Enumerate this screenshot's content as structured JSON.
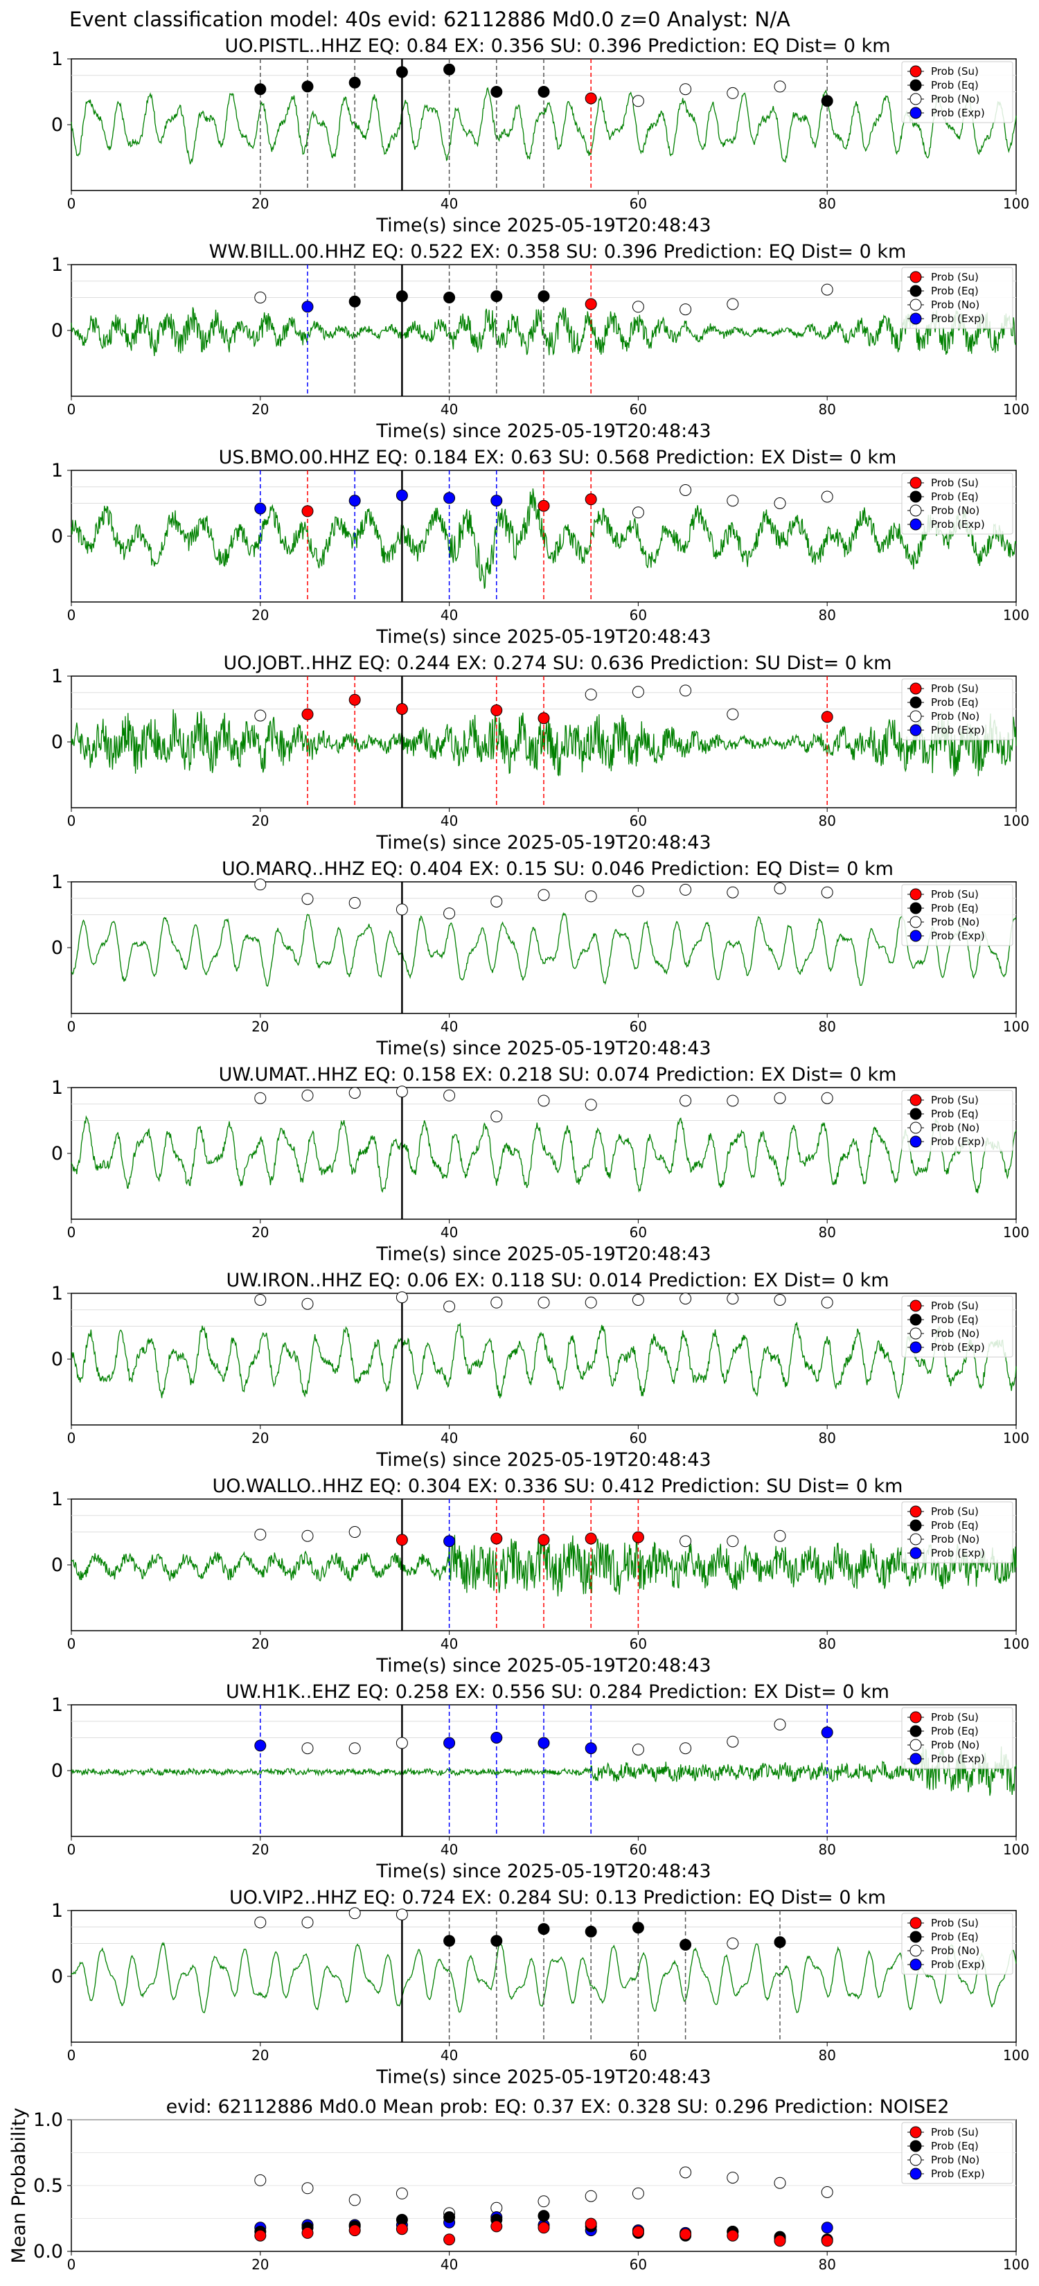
{
  "suptitle": "Event classification model: 40s evid: 62112886 Md0.0 z=0 Analyst: N/A",
  "legend_labels": [
    "Prob (Su)",
    "Prob (Eq)",
    "Prob (No)",
    "Prob (Exp)"
  ],
  "colors": {
    "waveform": "#008000",
    "su": "#ff0000",
    "eq": "#000000",
    "no": "#ffffff",
    "exp": "#0000ff",
    "vline_su": "#ff0000",
    "vline_eq": "#555555",
    "vline_exp": "#0000ff",
    "origin_line": "#000000"
  },
  "chart_data": [
    {
      "type": "line",
      "title": "UO.PISTL..HHZ   EQ: 0.84  EX: 0.356  SU: 0.396   Prediction: EQ    Dist= 0 km",
      "xlabel": "Time(s) since 2025-05-19T20:48:43",
      "xlim": [
        0,
        100
      ],
      "ylim": [
        -1,
        1
      ],
      "xticks": [
        "0",
        "20",
        "40",
        "60",
        "80",
        "100"
      ],
      "yticks": [
        "1",
        "0"
      ],
      "legend_position": "top-right",
      "waveform": {
        "style": "long",
        "noise": 0.05,
        "seed": 1
      },
      "origin_time": 35,
      "points": [
        {
          "x": 20,
          "y": 0.54,
          "cls": "eq"
        },
        {
          "x": 25,
          "y": 0.58,
          "cls": "eq"
        },
        {
          "x": 30,
          "y": 0.64,
          "cls": "eq"
        },
        {
          "x": 35,
          "y": 0.8,
          "cls": "eq"
        },
        {
          "x": 40,
          "y": 0.84,
          "cls": "eq"
        },
        {
          "x": 45,
          "y": 0.5,
          "cls": "eq"
        },
        {
          "x": 50,
          "y": 0.5,
          "cls": "eq"
        },
        {
          "x": 55,
          "y": 0.4,
          "cls": "su"
        },
        {
          "x": 60,
          "y": 0.36,
          "cls": "no"
        },
        {
          "x": 65,
          "y": 0.54,
          "cls": "no"
        },
        {
          "x": 70,
          "y": 0.48,
          "cls": "no"
        },
        {
          "x": 75,
          "y": 0.58,
          "cls": "no"
        },
        {
          "x": 80,
          "y": 0.36,
          "cls": "eq"
        }
      ]
    },
    {
      "type": "line",
      "title": "WW.BILL.00.HHZ   EQ: 0.522  EX: 0.358  SU: 0.396   Prediction: EQ    Dist= 0 km",
      "xlabel": "Time(s) since 2025-05-19T20:48:43",
      "xlim": [
        0,
        100
      ],
      "ylim": [
        -1,
        1
      ],
      "xticks": [
        "0",
        "20",
        "40",
        "60",
        "80",
        "100"
      ],
      "yticks": [
        "1",
        "0"
      ],
      "legend_position": "top-right",
      "waveform": {
        "style": "noisy",
        "noise": 0.2,
        "seed": 2
      },
      "origin_time": 35,
      "points": [
        {
          "x": 20,
          "y": 0.5,
          "cls": "no"
        },
        {
          "x": 25,
          "y": 0.36,
          "cls": "exp"
        },
        {
          "x": 30,
          "y": 0.44,
          "cls": "eq"
        },
        {
          "x": 35,
          "y": 0.52,
          "cls": "eq"
        },
        {
          "x": 40,
          "y": 0.5,
          "cls": "eq"
        },
        {
          "x": 45,
          "y": 0.52,
          "cls": "eq"
        },
        {
          "x": 50,
          "y": 0.52,
          "cls": "eq"
        },
        {
          "x": 55,
          "y": 0.4,
          "cls": "su"
        },
        {
          "x": 60,
          "y": 0.36,
          "cls": "no"
        },
        {
          "x": 65,
          "y": 0.32,
          "cls": "no"
        },
        {
          "x": 70,
          "y": 0.4,
          "cls": "no"
        },
        {
          "x": 80,
          "y": 0.62,
          "cls": "no"
        }
      ]
    },
    {
      "type": "line",
      "title": "US.BMO.00.HHZ   EQ: 0.184  EX: 0.63  SU: 0.568   Prediction: EX    Dist= 0 km",
      "xlabel": "Time(s) since 2025-05-19T20:48:43",
      "xlim": [
        0,
        100
      ],
      "ylim": [
        -1,
        1
      ],
      "xticks": [
        "0",
        "20",
        "40",
        "60",
        "80",
        "100"
      ],
      "yticks": [
        "1",
        "0"
      ],
      "legend_position": "top-right",
      "waveform": {
        "style": "mixed",
        "noise": 0.15,
        "seed": 3
      },
      "origin_time": 35,
      "points": [
        {
          "x": 20,
          "y": 0.42,
          "cls": "exp"
        },
        {
          "x": 25,
          "y": 0.38,
          "cls": "su"
        },
        {
          "x": 30,
          "y": 0.54,
          "cls": "exp"
        },
        {
          "x": 35,
          "y": 0.62,
          "cls": "exp"
        },
        {
          "x": 40,
          "y": 0.58,
          "cls": "exp"
        },
        {
          "x": 45,
          "y": 0.54,
          "cls": "exp"
        },
        {
          "x": 50,
          "y": 0.46,
          "cls": "su"
        },
        {
          "x": 55,
          "y": 0.56,
          "cls": "su"
        },
        {
          "x": 60,
          "y": 0.36,
          "cls": "no"
        },
        {
          "x": 65,
          "y": 0.7,
          "cls": "no"
        },
        {
          "x": 70,
          "y": 0.54,
          "cls": "no"
        },
        {
          "x": 75,
          "y": 0.5,
          "cls": "no"
        },
        {
          "x": 80,
          "y": 0.6,
          "cls": "no"
        }
      ]
    },
    {
      "type": "line",
      "title": "UO.JOBT..HHZ   EQ: 0.244  EX: 0.274  SU: 0.636   Prediction: SU    Dist= 0 km",
      "xlabel": "Time(s) since 2025-05-19T20:48:43",
      "xlim": [
        0,
        100
      ],
      "ylim": [
        -1,
        1
      ],
      "xticks": [
        "0",
        "20",
        "40",
        "60",
        "80",
        "100"
      ],
      "yticks": [
        "1",
        "0"
      ],
      "legend_position": "top-right",
      "waveform": {
        "style": "noisy",
        "noise": 0.35,
        "seed": 4
      },
      "origin_time": 35,
      "points": [
        {
          "x": 20,
          "y": 0.4,
          "cls": "no"
        },
        {
          "x": 25,
          "y": 0.42,
          "cls": "su"
        },
        {
          "x": 30,
          "y": 0.64,
          "cls": "su"
        },
        {
          "x": 35,
          "y": 0.5,
          "cls": "su"
        },
        {
          "x": 45,
          "y": 0.48,
          "cls": "su"
        },
        {
          "x": 50,
          "y": 0.36,
          "cls": "su"
        },
        {
          "x": 55,
          "y": 0.72,
          "cls": "no"
        },
        {
          "x": 60,
          "y": 0.76,
          "cls": "no"
        },
        {
          "x": 65,
          "y": 0.78,
          "cls": "no"
        },
        {
          "x": 70,
          "y": 0.42,
          "cls": "no"
        },
        {
          "x": 80,
          "y": 0.38,
          "cls": "su"
        }
      ]
    },
    {
      "type": "line",
      "title": "UO.MARQ..HHZ   EQ: 0.404  EX: 0.15  SU: 0.046   Prediction: EQ    Dist= 0 km",
      "xlabel": "Time(s) since 2025-05-19T20:48:43",
      "xlim": [
        0,
        100
      ],
      "ylim": [
        -1,
        1
      ],
      "xticks": [
        "0",
        "20",
        "40",
        "60",
        "80",
        "100"
      ],
      "yticks": [
        "1",
        "0"
      ],
      "legend_position": "top-right",
      "waveform": {
        "style": "long",
        "noise": 0.03,
        "seed": 5
      },
      "origin_time": 35,
      "points": [
        {
          "x": 20,
          "y": 0.96,
          "cls": "no"
        },
        {
          "x": 25,
          "y": 0.74,
          "cls": "no"
        },
        {
          "x": 30,
          "y": 0.68,
          "cls": "no"
        },
        {
          "x": 35,
          "y": 0.58,
          "cls": "no"
        },
        {
          "x": 40,
          "y": 0.52,
          "cls": "no"
        },
        {
          "x": 45,
          "y": 0.7,
          "cls": "no"
        },
        {
          "x": 50,
          "y": 0.8,
          "cls": "no"
        },
        {
          "x": 55,
          "y": 0.78,
          "cls": "no"
        },
        {
          "x": 60,
          "y": 0.86,
          "cls": "no"
        },
        {
          "x": 65,
          "y": 0.88,
          "cls": "no"
        },
        {
          "x": 70,
          "y": 0.84,
          "cls": "no"
        },
        {
          "x": 75,
          "y": 0.9,
          "cls": "no"
        },
        {
          "x": 80,
          "y": 0.84,
          "cls": "no"
        }
      ]
    },
    {
      "type": "line",
      "title": "UW.UMAT..HHZ   EQ: 0.158  EX: 0.218  SU: 0.074   Prediction: EX    Dist= 0 km",
      "xlabel": "Time(s) since 2025-05-19T20:48:43",
      "xlim": [
        0,
        100
      ],
      "ylim": [
        -1,
        1
      ],
      "xticks": [
        "0",
        "20",
        "40",
        "60",
        "80",
        "100"
      ],
      "yticks": [
        "1",
        "0"
      ],
      "legend_position": "top-right",
      "waveform": {
        "style": "long",
        "noise": 0.06,
        "seed": 6
      },
      "origin_time": 35,
      "points": [
        {
          "x": 20,
          "y": 0.84,
          "cls": "no"
        },
        {
          "x": 25,
          "y": 0.88,
          "cls": "no"
        },
        {
          "x": 30,
          "y": 0.92,
          "cls": "no"
        },
        {
          "x": 35,
          "y": 0.94,
          "cls": "no"
        },
        {
          "x": 40,
          "y": 0.88,
          "cls": "no"
        },
        {
          "x": 45,
          "y": 0.56,
          "cls": "no"
        },
        {
          "x": 50,
          "y": 0.8,
          "cls": "no"
        },
        {
          "x": 55,
          "y": 0.74,
          "cls": "no"
        },
        {
          "x": 65,
          "y": 0.8,
          "cls": "no"
        },
        {
          "x": 70,
          "y": 0.8,
          "cls": "no"
        },
        {
          "x": 75,
          "y": 0.84,
          "cls": "no"
        },
        {
          "x": 80,
          "y": 0.84,
          "cls": "no"
        }
      ]
    },
    {
      "type": "line",
      "title": "UW.IRON..HHZ   EQ: 0.06  EX: 0.118  SU: 0.014   Prediction: EX    Dist= 0 km",
      "xlabel": "Time(s) since 2025-05-19T20:48:43",
      "xlim": [
        0,
        100
      ],
      "ylim": [
        -1,
        1
      ],
      "xticks": [
        "0",
        "20",
        "40",
        "60",
        "80",
        "100"
      ],
      "yticks": [
        "1",
        "0"
      ],
      "legend_position": "top-right",
      "waveform": {
        "style": "long",
        "noise": 0.07,
        "seed": 7
      },
      "origin_time": 35,
      "points": [
        {
          "x": 20,
          "y": 0.9,
          "cls": "no"
        },
        {
          "x": 25,
          "y": 0.84,
          "cls": "no"
        },
        {
          "x": 35,
          "y": 0.94,
          "cls": "no"
        },
        {
          "x": 40,
          "y": 0.8,
          "cls": "no"
        },
        {
          "x": 45,
          "y": 0.86,
          "cls": "no"
        },
        {
          "x": 50,
          "y": 0.86,
          "cls": "no"
        },
        {
          "x": 55,
          "y": 0.86,
          "cls": "no"
        },
        {
          "x": 60,
          "y": 0.9,
          "cls": "no"
        },
        {
          "x": 65,
          "y": 0.92,
          "cls": "no"
        },
        {
          "x": 70,
          "y": 0.92,
          "cls": "no"
        },
        {
          "x": 75,
          "y": 0.9,
          "cls": "no"
        },
        {
          "x": 80,
          "y": 0.86,
          "cls": "no"
        }
      ]
    },
    {
      "type": "line",
      "title": "UO.WALLO..HHZ   EQ: 0.304  EX: 0.336  SU: 0.412   Prediction: SU    Dist= 0 km",
      "xlabel": "Time(s) since 2025-05-19T20:48:43",
      "xlim": [
        0,
        100
      ],
      "ylim": [
        -1,
        1
      ],
      "xticks": [
        "0",
        "20",
        "40",
        "60",
        "80",
        "100"
      ],
      "yticks": [
        "1",
        "0"
      ],
      "legend_position": "top-right",
      "waveform": {
        "style": "burst",
        "noise": 0.4,
        "seed": 8
      },
      "origin_time": 35,
      "points": [
        {
          "x": 20,
          "y": 0.46,
          "cls": "no"
        },
        {
          "x": 25,
          "y": 0.44,
          "cls": "no"
        },
        {
          "x": 30,
          "y": 0.5,
          "cls": "no"
        },
        {
          "x": 35,
          "y": 0.38,
          "cls": "su"
        },
        {
          "x": 40,
          "y": 0.36,
          "cls": "exp"
        },
        {
          "x": 45,
          "y": 0.4,
          "cls": "su"
        },
        {
          "x": 50,
          "y": 0.38,
          "cls": "su"
        },
        {
          "x": 55,
          "y": 0.4,
          "cls": "su"
        },
        {
          "x": 60,
          "y": 0.42,
          "cls": "su"
        },
        {
          "x": 65,
          "y": 0.36,
          "cls": "no"
        },
        {
          "x": 70,
          "y": 0.36,
          "cls": "no"
        },
        {
          "x": 75,
          "y": 0.44,
          "cls": "no"
        }
      ]
    },
    {
      "type": "line",
      "title": "UW.H1K..EHZ   EQ: 0.258  EX: 0.556  SU: 0.284   Prediction: EX    Dist= 0 km",
      "xlabel": "Time(s) since 2025-05-19T20:48:43",
      "xlim": [
        0,
        100
      ],
      "ylim": [
        -1,
        1
      ],
      "xticks": [
        "0",
        "20",
        "40",
        "60",
        "80",
        "100"
      ],
      "yticks": [
        "1",
        "0"
      ],
      "legend_position": "top-right",
      "waveform": {
        "style": "grow",
        "noise": 0.08,
        "seed": 9
      },
      "origin_time": 35,
      "points": [
        {
          "x": 20,
          "y": 0.38,
          "cls": "exp"
        },
        {
          "x": 25,
          "y": 0.34,
          "cls": "no"
        },
        {
          "x": 30,
          "y": 0.34,
          "cls": "no"
        },
        {
          "x": 35,
          "y": 0.42,
          "cls": "no"
        },
        {
          "x": 40,
          "y": 0.42,
          "cls": "exp"
        },
        {
          "x": 45,
          "y": 0.5,
          "cls": "exp"
        },
        {
          "x": 50,
          "y": 0.42,
          "cls": "exp"
        },
        {
          "x": 55,
          "y": 0.34,
          "cls": "exp"
        },
        {
          "x": 60,
          "y": 0.32,
          "cls": "no"
        },
        {
          "x": 65,
          "y": 0.34,
          "cls": "no"
        },
        {
          "x": 70,
          "y": 0.44,
          "cls": "no"
        },
        {
          "x": 75,
          "y": 0.7,
          "cls": "no"
        },
        {
          "x": 80,
          "y": 0.58,
          "cls": "exp"
        }
      ]
    },
    {
      "type": "line",
      "title": "UO.VIP2..HHZ   EQ: 0.724  EX: 0.284  SU: 0.13   Prediction: EQ    Dist= 0 km",
      "xlabel": "Time(s) since 2025-05-19T20:48:43",
      "xlim": [
        0,
        100
      ],
      "ylim": [
        -1,
        1
      ],
      "xticks": [
        "0",
        "20",
        "40",
        "60",
        "80",
        "100"
      ],
      "yticks": [
        "1",
        "0"
      ],
      "legend_position": "top-right",
      "waveform": {
        "style": "long",
        "noise": 0.02,
        "seed": 10
      },
      "origin_time": 35,
      "points": [
        {
          "x": 20,
          "y": 0.82,
          "cls": "no"
        },
        {
          "x": 25,
          "y": 0.82,
          "cls": "no"
        },
        {
          "x": 30,
          "y": 0.96,
          "cls": "no"
        },
        {
          "x": 35,
          "y": 0.94,
          "cls": "no"
        },
        {
          "x": 40,
          "y": 0.54,
          "cls": "eq"
        },
        {
          "x": 45,
          "y": 0.54,
          "cls": "eq"
        },
        {
          "x": 50,
          "y": 0.72,
          "cls": "eq"
        },
        {
          "x": 55,
          "y": 0.68,
          "cls": "eq"
        },
        {
          "x": 60,
          "y": 0.74,
          "cls": "eq"
        },
        {
          "x": 65,
          "y": 0.48,
          "cls": "eq"
        },
        {
          "x": 70,
          "y": 0.5,
          "cls": "no"
        },
        {
          "x": 75,
          "y": 0.52,
          "cls": "eq"
        }
      ]
    },
    {
      "type": "scatter",
      "title": "evid: 62112886  Md0.0   Mean prob:   EQ: 0.37  EX: 0.328  SU: 0.296   Prediction: NOISE2",
      "xlabel": "",
      "ylabel": "Mean Probability",
      "xlim": [
        0,
        100
      ],
      "ylim": [
        0,
        1
      ],
      "xticks": [
        "0",
        "20",
        "40",
        "60",
        "80",
        "100"
      ],
      "yticks": [
        "0.0",
        "0.5",
        "1.0"
      ],
      "legend_position": "top-right",
      "series": [
        {
          "name": "Prob (No)",
          "cls": "no",
          "x": [
            20,
            25,
            30,
            35,
            40,
            45,
            50,
            55,
            60,
            65,
            70,
            75,
            80
          ],
          "values": [
            0.54,
            0.48,
            0.39,
            0.44,
            0.29,
            0.33,
            0.38,
            0.42,
            0.44,
            0.6,
            0.56,
            0.52,
            0.45
          ]
        },
        {
          "name": "Prob (Exp)",
          "cls": "exp",
          "x": [
            20,
            25,
            30,
            35,
            40,
            45,
            50,
            55,
            60,
            65,
            70,
            75,
            80
          ],
          "values": [
            0.18,
            0.2,
            0.2,
            0.2,
            0.22,
            0.26,
            0.2,
            0.16,
            0.16,
            0.14,
            0.15,
            0.1,
            0.18
          ]
        },
        {
          "name": "Prob (Eq)",
          "cls": "eq",
          "x": [
            20,
            25,
            30,
            35,
            40,
            45,
            50,
            55,
            60,
            65,
            70,
            75,
            80
          ],
          "values": [
            0.15,
            0.18,
            0.19,
            0.24,
            0.26,
            0.24,
            0.27,
            0.19,
            0.14,
            0.12,
            0.15,
            0.11,
            0.09
          ]
        },
        {
          "name": "Prob (Su)",
          "cls": "su",
          "x": [
            20,
            25,
            30,
            35,
            40,
            45,
            50,
            55,
            60,
            65,
            70,
            75,
            80
          ],
          "values": [
            0.12,
            0.14,
            0.16,
            0.17,
            0.09,
            0.19,
            0.18,
            0.21,
            0.15,
            0.13,
            0.12,
            0.08,
            0.08
          ]
        }
      ]
    }
  ]
}
